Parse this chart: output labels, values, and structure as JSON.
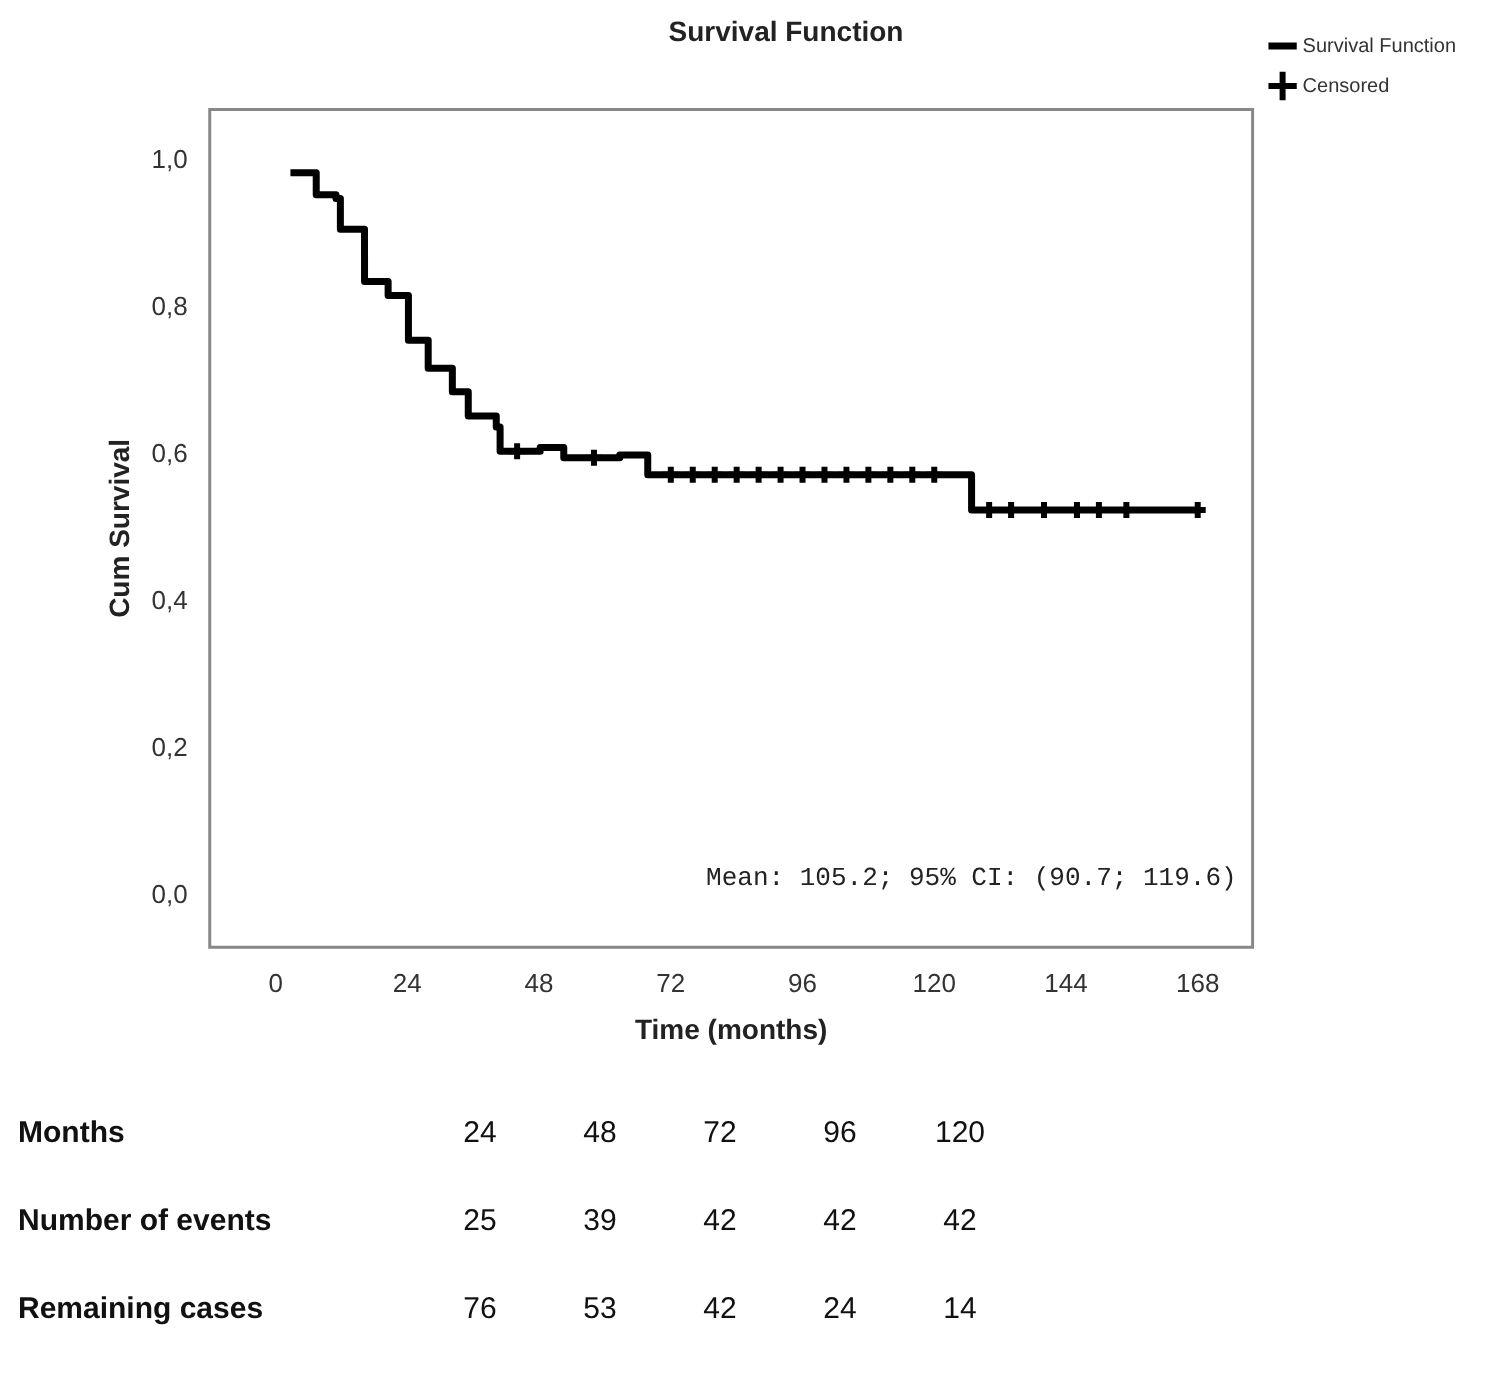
{
  "chart_data": {
    "type": "step",
    "title": "Survival Function",
    "xlabel": "Time (months)",
    "ylabel": "Cum Survival",
    "xlim": [
      -12,
      178
    ],
    "xticks": [
      0,
      24,
      48,
      72,
      96,
      120,
      144,
      168
    ],
    "ylim": [
      -0.07,
      1.07
    ],
    "yticks": [
      {
        "value": 0,
        "label": "0,0"
      },
      {
        "value": 0.2,
        "label": "0,2"
      },
      {
        "value": 0.4,
        "label": "0,4"
      },
      {
        "value": 0.6,
        "label": "0,6"
      },
      {
        "value": 0.8,
        "label": "0,8"
      },
      {
        "value": 1,
        "label": "1,0"
      }
    ],
    "grid": false,
    "legend": "top right",
    "series": [
      {
        "name": "Survival Function",
        "color": "#000000",
        "x": [
          2.7,
          7.4,
          11,
          11.8,
          16.2,
          20.5,
          24.2,
          27.8,
          32.2,
          35.1,
          40.2,
          40.9,
          48.2,
          52.5,
          62.7,
          67.8,
          126.8,
          168
        ],
        "values": [
          0.984,
          0.954,
          0.949,
          0.907,
          0.836,
          0.817,
          0.756,
          0.718,
          0.686,
          0.653,
          0.638,
          0.605,
          0.61,
          0.596,
          0.6,
          0.573,
          0.525,
          0.525
        ]
      },
      {
        "name": "Censored",
        "type": "scatter",
        "marker": "cross",
        "color": "#000000",
        "x": [
          44,
          58,
          72,
          76,
          80,
          84,
          88,
          92,
          96,
          100,
          104,
          108,
          112,
          116,
          120,
          130,
          134,
          140,
          146,
          150,
          155,
          168
        ],
        "values": [
          0.605,
          0.596,
          0.573,
          0.573,
          0.573,
          0.573,
          0.573,
          0.573,
          0.573,
          0.573,
          0.573,
          0.573,
          0.573,
          0.573,
          0.573,
          0.525,
          0.525,
          0.525,
          0.525,
          0.525,
          0.525,
          0.525
        ]
      }
    ],
    "annotations": [
      "Mean: 105.2; 95% CI: (90.7; 119.6)",
      "Months",
      "24",
      "48",
      "72",
      "96",
      "120",
      "Number of events",
      "25",
      "39",
      "42",
      "42",
      "42",
      "Remaining cases",
      "76",
      "53",
      "42",
      "24",
      "14"
    ]
  }
}
